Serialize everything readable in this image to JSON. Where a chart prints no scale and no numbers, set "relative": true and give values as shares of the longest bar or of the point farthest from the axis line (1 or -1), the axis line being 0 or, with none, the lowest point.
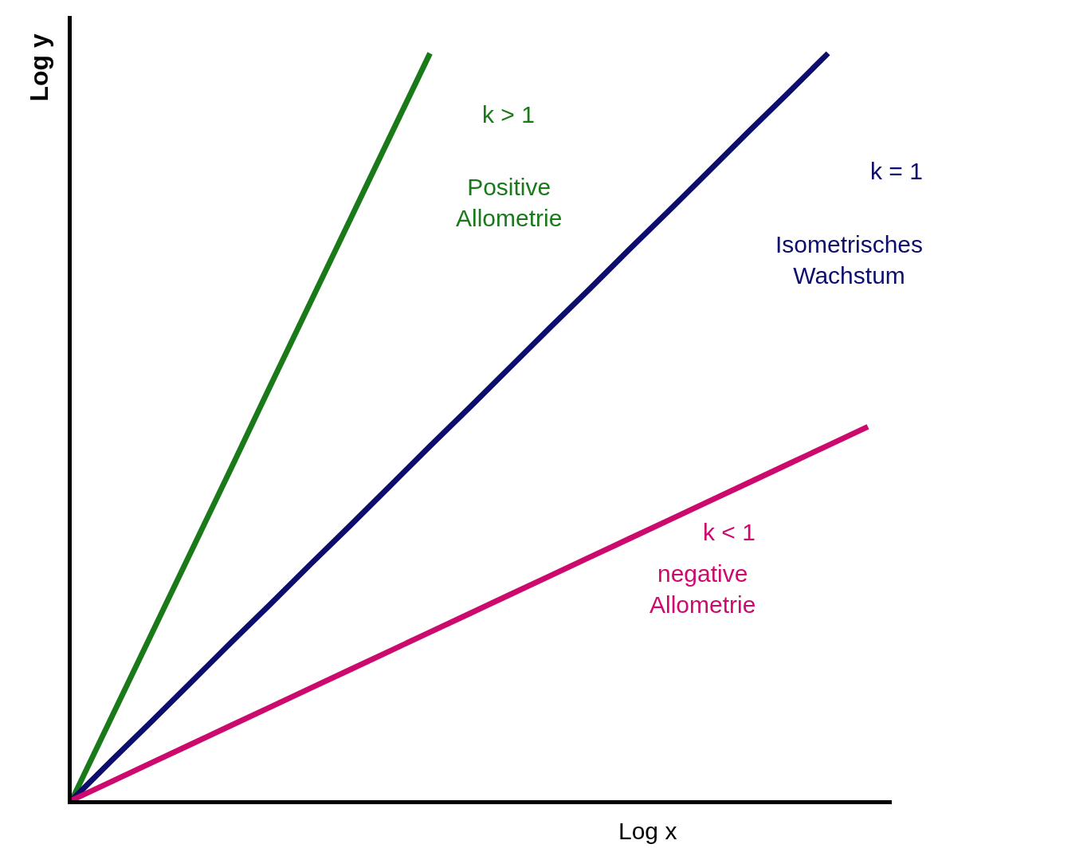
{
  "chart_data": {
    "type": "line",
    "relative": true,
    "xlabel": "Log x",
    "ylabel": "Log y",
    "marker": "none",
    "line_style": "solid",
    "categories": [
      null,
      null,
      null,
      null,
      null,
      null,
      null,
      null,
      null,
      null,
      null,
      null,
      null,
      null,
      null,
      null,
      null,
      null,
      null,
      null,
      null
    ],
    "series": [
      {
        "color": "#1a7a1a",
        "values": [
          0,
          0.111,
          0.222,
          0.333,
          0.444,
          0.556,
          0.667,
          0.778,
          0.889,
          1.0,
          null,
          null,
          null,
          null,
          null,
          null,
          null,
          null,
          null,
          null,
          null
        ]
      },
      {
        "color": "#0d0d6e",
        "values": [
          0,
          0.053,
          0.105,
          0.158,
          0.211,
          0.263,
          0.316,
          0.368,
          0.421,
          0.474,
          0.526,
          0.579,
          0.632,
          0.684,
          0.737,
          0.789,
          0.842,
          0.895,
          0.947,
          1.0,
          null
        ]
      },
      {
        "color": "#cc0a6e",
        "values": [
          0,
          0.025,
          0.05,
          0.075,
          0.1,
          0.125,
          0.15,
          0.175,
          0.2,
          0.225,
          0.25,
          0.275,
          0.3,
          0.325,
          0.35,
          0.375,
          0.4,
          0.425,
          0.45,
          0.475,
          0.5
        ]
      }
    ],
    "annotations": [
      "k > 1",
      "Positive Allometrie",
      "k = 1",
      "Isometrisches Wachstum",
      "k < 1",
      "negative Allometrie"
    ]
  }
}
